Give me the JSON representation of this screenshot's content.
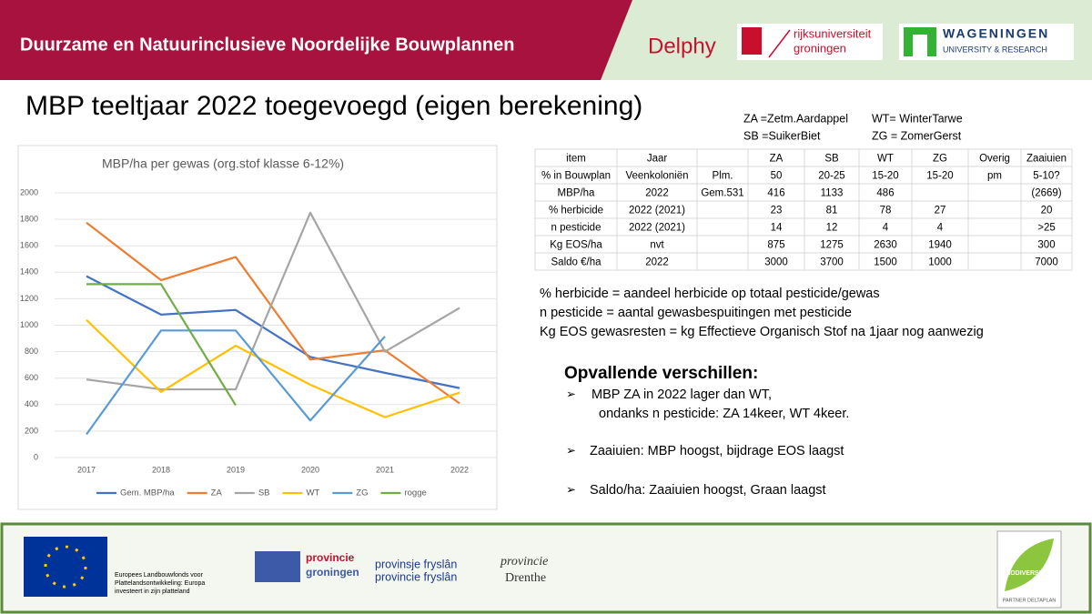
{
  "header": {
    "title": "Duurzame en Natuurinclusieve Noordelijke Bouwplannen",
    "logos": [
      "Delphy",
      "rijksuniversiteit",
      "groningen",
      "WAGENINGEN",
      "UNIVERSITY & RESEARCH"
    ]
  },
  "title": "MBP teeltjaar 2022 toegevoegd (eigen berekening)",
  "abbreviations": [
    "ZA =Zetm.Aardappel",
    "WT= WinterTarwe",
    "SB =SuikerBiet",
    "ZG = ZomerGerst"
  ],
  "table": {
    "rows": [
      [
        "item",
        "Jaar",
        null,
        "ZA",
        "SB",
        "WT",
        "ZG",
        "Overig",
        "Zaaiuien"
      ],
      [
        "% in Bouwplan",
        "Veenkoloniën",
        "Plm.",
        "50",
        "20-25",
        "15-20",
        "15-20",
        "pm",
        "5-10?"
      ],
      [
        "MBP/ha",
        "2022",
        "Gem.531",
        "416",
        "1133",
        "486",
        null,
        null,
        "(2669)"
      ],
      [
        "% herbicide",
        "2022 (2021)",
        null,
        "23",
        "81",
        "78",
        "27",
        null,
        "20"
      ],
      [
        "n pesticide",
        "2022 (2021)",
        null,
        "14",
        "12",
        "4",
        "4",
        null,
        ">25"
      ],
      [
        "Kg EOS/ha",
        "nvt",
        null,
        "875",
        "1275",
        "2630",
        "1940",
        null,
        "300"
      ],
      [
        "Saldo €/ha",
        "2022",
        null,
        "3000",
        "3700",
        "1500",
        "1000",
        null,
        "7000"
      ]
    ]
  },
  "notes": [
    "% herbicide = aandeel herbicide op totaal pesticide/gewas",
    "n pesticide  = aantal gewasbespuitingen met pesticide",
    "Kg EOS gewasresten = kg Effectieve Organisch Stof na 1jaar nog aanwezig"
  ],
  "highlights": {
    "heading": "Opvallende verschillen:",
    "items": [
      "MBP ZA in 2022 lager dan WT,",
      "ondanks n pesticide:  ZA 14keer, WT 4keer.",
      "Zaaiuien:  MBP hoogst, bijdrage EOS laagst",
      "Saldo/ha:  Zaaiuien hoogst, Graan laagst"
    ]
  },
  "footer": {
    "eu": [
      "Europees Landbouwfonds voor",
      "Plattelandsontwikkeling: Europa",
      "investeert in zijn platteland"
    ],
    "provinces": [
      "provincie",
      "groningen",
      "provinsje fryslân",
      "provincie fryslân",
      "provincie",
      "Drenthe"
    ],
    "partner": [
      "BIODIVERSITEIT",
      "PARTNER DELTAPLAN"
    ]
  },
  "chart_data": {
    "type": "line",
    "title": "MBP/ha per gewas (org.stof klasse 6-12%)",
    "categories": [
      "2017",
      "2018",
      "2019",
      "2020",
      "2021",
      "2022"
    ],
    "series": [
      {
        "name": "Gem. MBP/ha",
        "color": "#4472c4",
        "values": [
          1370,
          1080,
          1115,
          760,
          640,
          525
        ]
      },
      {
        "name": "ZA",
        "color": "#ed7d31",
        "values": [
          1775,
          1340,
          1515,
          740,
          810,
          410
        ]
      },
      {
        "name": "SB",
        "color": "#a5a5a5",
        "values": [
          590,
          515,
          515,
          1850,
          800,
          1130
        ]
      },
      {
        "name": "WT",
        "color": "#ffc000",
        "values": [
          1040,
          495,
          845,
          550,
          305,
          490
        ]
      },
      {
        "name": "ZG",
        "color": "#5b9bd5",
        "values": [
          175,
          960,
          960,
          280,
          915,
          null
        ]
      },
      {
        "name": "rogge",
        "color": "#70ad47",
        "values": [
          1310,
          1310,
          395,
          null,
          null,
          null
        ]
      }
    ],
    "ylim": [
      0,
      2000
    ],
    "yticks": [
      0,
      200,
      400,
      600,
      800,
      1000,
      1200,
      1400,
      1600,
      1800,
      2000
    ],
    "grid": true,
    "legend": "bottom"
  }
}
